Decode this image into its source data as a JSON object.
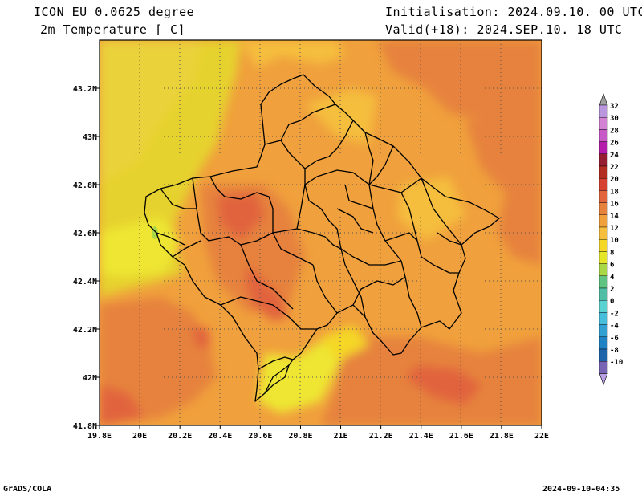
{
  "header": {
    "model": "ICON EU 0.0625 degree",
    "variable": "2m Temperature [ C]",
    "init": "Initialisation: 2024.09.10. 00 UTC",
    "valid": "Valid(+18): 2024.SEP.10. 18 UTC"
  },
  "footer": {
    "left": "GrADS/COLA",
    "right": "2024-09-10-04:35"
  },
  "map": {
    "lon_range": [
      19.8,
      22.0
    ],
    "lat_range": [
      41.8,
      43.4
    ],
    "x_ticks": [
      "19.8E",
      "20E",
      "20.2E",
      "20.4E",
      "20.6E",
      "20.8E",
      "21E",
      "21.2E",
      "21.4E",
      "21.6E",
      "21.8E",
      "22E"
    ],
    "y_ticks": [
      "43.2N",
      "43N",
      "42.8N",
      "42.6N",
      "42.4N",
      "42.2N",
      "42N",
      "41.8N"
    ]
  },
  "colorbar": {
    "levels": [
      "32",
      "30",
      "28",
      "26",
      "24",
      "22",
      "20",
      "18",
      "16",
      "14",
      "12",
      "10",
      "8",
      "6",
      "4",
      "2",
      "0",
      "-2",
      "-4",
      "-6",
      "-8",
      "-10"
    ],
    "colors": [
      "#b996dd",
      "#d282d2",
      "#c85ac8",
      "#b41eaa",
      "#961e32",
      "#b42d23",
      "#d74132",
      "#e1643c",
      "#e6823c",
      "#f0a03c",
      "#f5be3c",
      "#f5d728",
      "#e6e628",
      "#aad746",
      "#5fc382",
      "#50bea5",
      "#5ad2d2",
      "#46bedc",
      "#32a0d2",
      "#1e82c3",
      "#1e64aa",
      "#7864b4"
    ],
    "top_arrow_color": "#a0a0a0",
    "bottom_arrow_color": "#b9a0e6"
  }
}
